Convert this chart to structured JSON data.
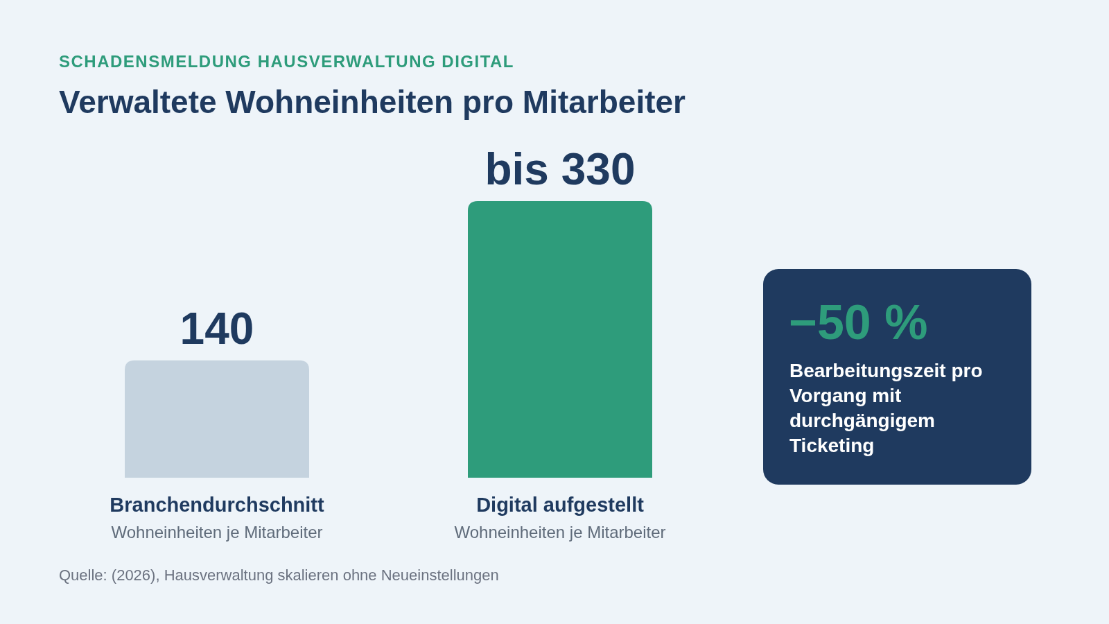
{
  "chart_data": [
    {
      "type": "bar",
      "subtitle": "SCHADENSMELDUNG HAUSVERWALTUNG DIGITAL",
      "title": "Verwaltete Wohneinheiten pro Mitarbeiter",
      "categories": [
        "Branchendurchschnitt",
        "Digital aufgestellt"
      ],
      "values": [
        140,
        330
      ],
      "value_labels": [
        "140",
        "bis 330"
      ],
      "colors": [
        "#c5d3df",
        "#2e9c7b"
      ],
      "annotations": [
        "Wohneinheiten je Mitarbeiter",
        "Wohneinheiten je Mitarbeiter",
        "Quelle: (2026), Hausverwaltung skalieren ohne Neueinstellungen"
      ]
    },
    {
      "type": "other",
      "title": "−50 %",
      "subtitle": "Bearbeitungszeit pro Vorgang mit durchgängigem Ticketing"
    }
  ]
}
